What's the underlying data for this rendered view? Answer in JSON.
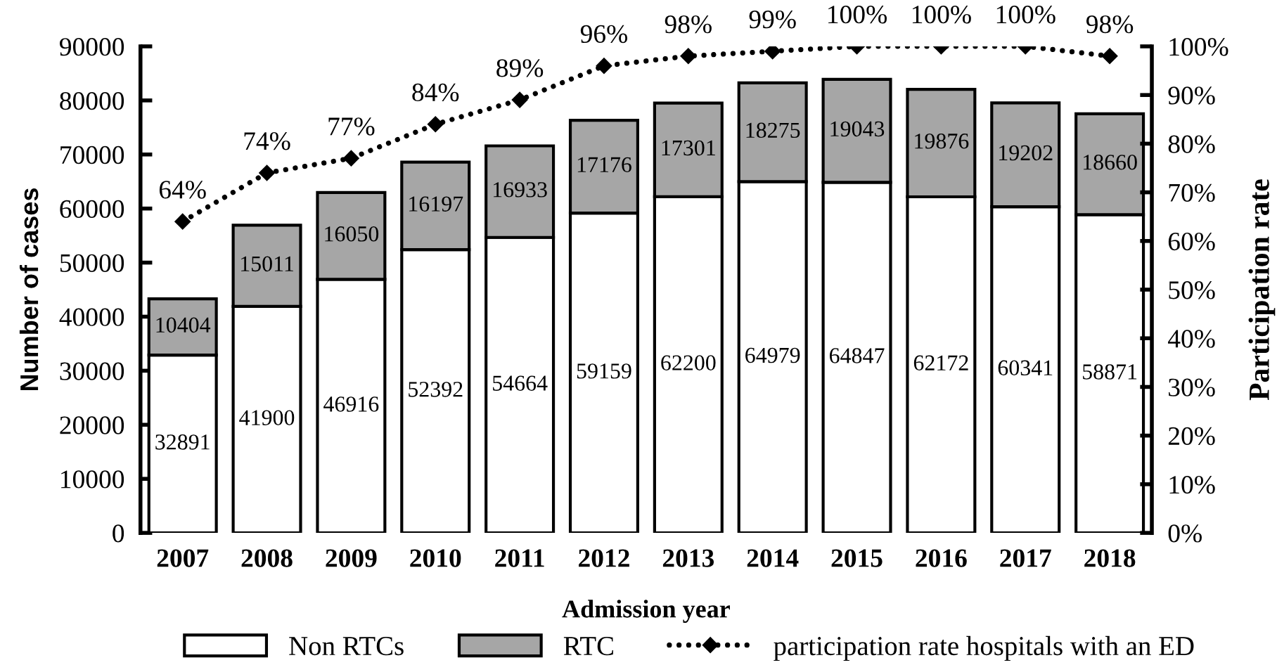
{
  "chart_data": {
    "type": "bar",
    "stacked": true,
    "xlabel": "Admission year",
    "ylabel": "Number of cases",
    "y2label": "Participation rate",
    "categories": [
      "2007",
      "2008",
      "2009",
      "2010",
      "2011",
      "2012",
      "2013",
      "2014",
      "2015",
      "2016",
      "2017",
      "2018"
    ],
    "series": [
      {
        "name": "Non RTCs",
        "color": "#ffffff",
        "values": [
          32891,
          41900,
          46916,
          52392,
          54664,
          59159,
          62200,
          64979,
          64847,
          62172,
          60341,
          58871
        ],
        "value_labels": [
          "32891",
          "41900",
          "46916",
          "52392",
          "54664",
          "59159",
          "62200",
          "64979",
          "64847",
          "62172",
          "60341",
          "58871"
        ]
      },
      {
        "name": "RTC",
        "color": "#a6a6a6",
        "values": [
          10404,
          15011,
          16050,
          16197,
          16933,
          17176,
          17301,
          18275,
          19043,
          19876,
          19202,
          18660
        ],
        "value_labels": [
          "10404",
          "15011",
          "16050",
          "16197",
          "16933",
          "17176",
          "17301",
          "18275",
          "19043",
          "19876",
          "19202",
          "18660"
        ]
      },
      {
        "name": "participation rate hospitals with an ED",
        "type": "line",
        "axis": "y2",
        "color": "#000000",
        "marker": "diamond",
        "line_style": "dotted",
        "values": [
          64,
          74,
          77,
          84,
          89,
          96,
          98,
          99,
          100,
          100,
          100,
          98
        ],
        "value_labels": [
          "64%",
          "74%",
          "77%",
          "84%",
          "89%",
          "96%",
          "98%",
          "99%",
          "100%",
          "100%",
          "100%",
          "98%"
        ]
      }
    ],
    "ylim": [
      0,
      90000
    ],
    "yticks": [
      0,
      10000,
      20000,
      30000,
      40000,
      50000,
      60000,
      70000,
      80000,
      90000
    ],
    "y2lim": [
      0,
      100
    ],
    "y2ticks": [
      {
        "value": 0,
        "label": "0%"
      },
      {
        "value": 10,
        "label": "10%"
      },
      {
        "value": 20,
        "label": "20%"
      },
      {
        "value": 30,
        "label": "30%"
      },
      {
        "value": 40,
        "label": "40%"
      },
      {
        "value": 50,
        "label": "50%"
      },
      {
        "value": 60,
        "label": "60%"
      },
      {
        "value": 70,
        "label": "70%"
      },
      {
        "value": 80,
        "label": "80%"
      },
      {
        "value": 90,
        "label": "90%"
      },
      {
        "value": 100,
        "label": "100%"
      }
    ],
    "legend": "bottom"
  }
}
